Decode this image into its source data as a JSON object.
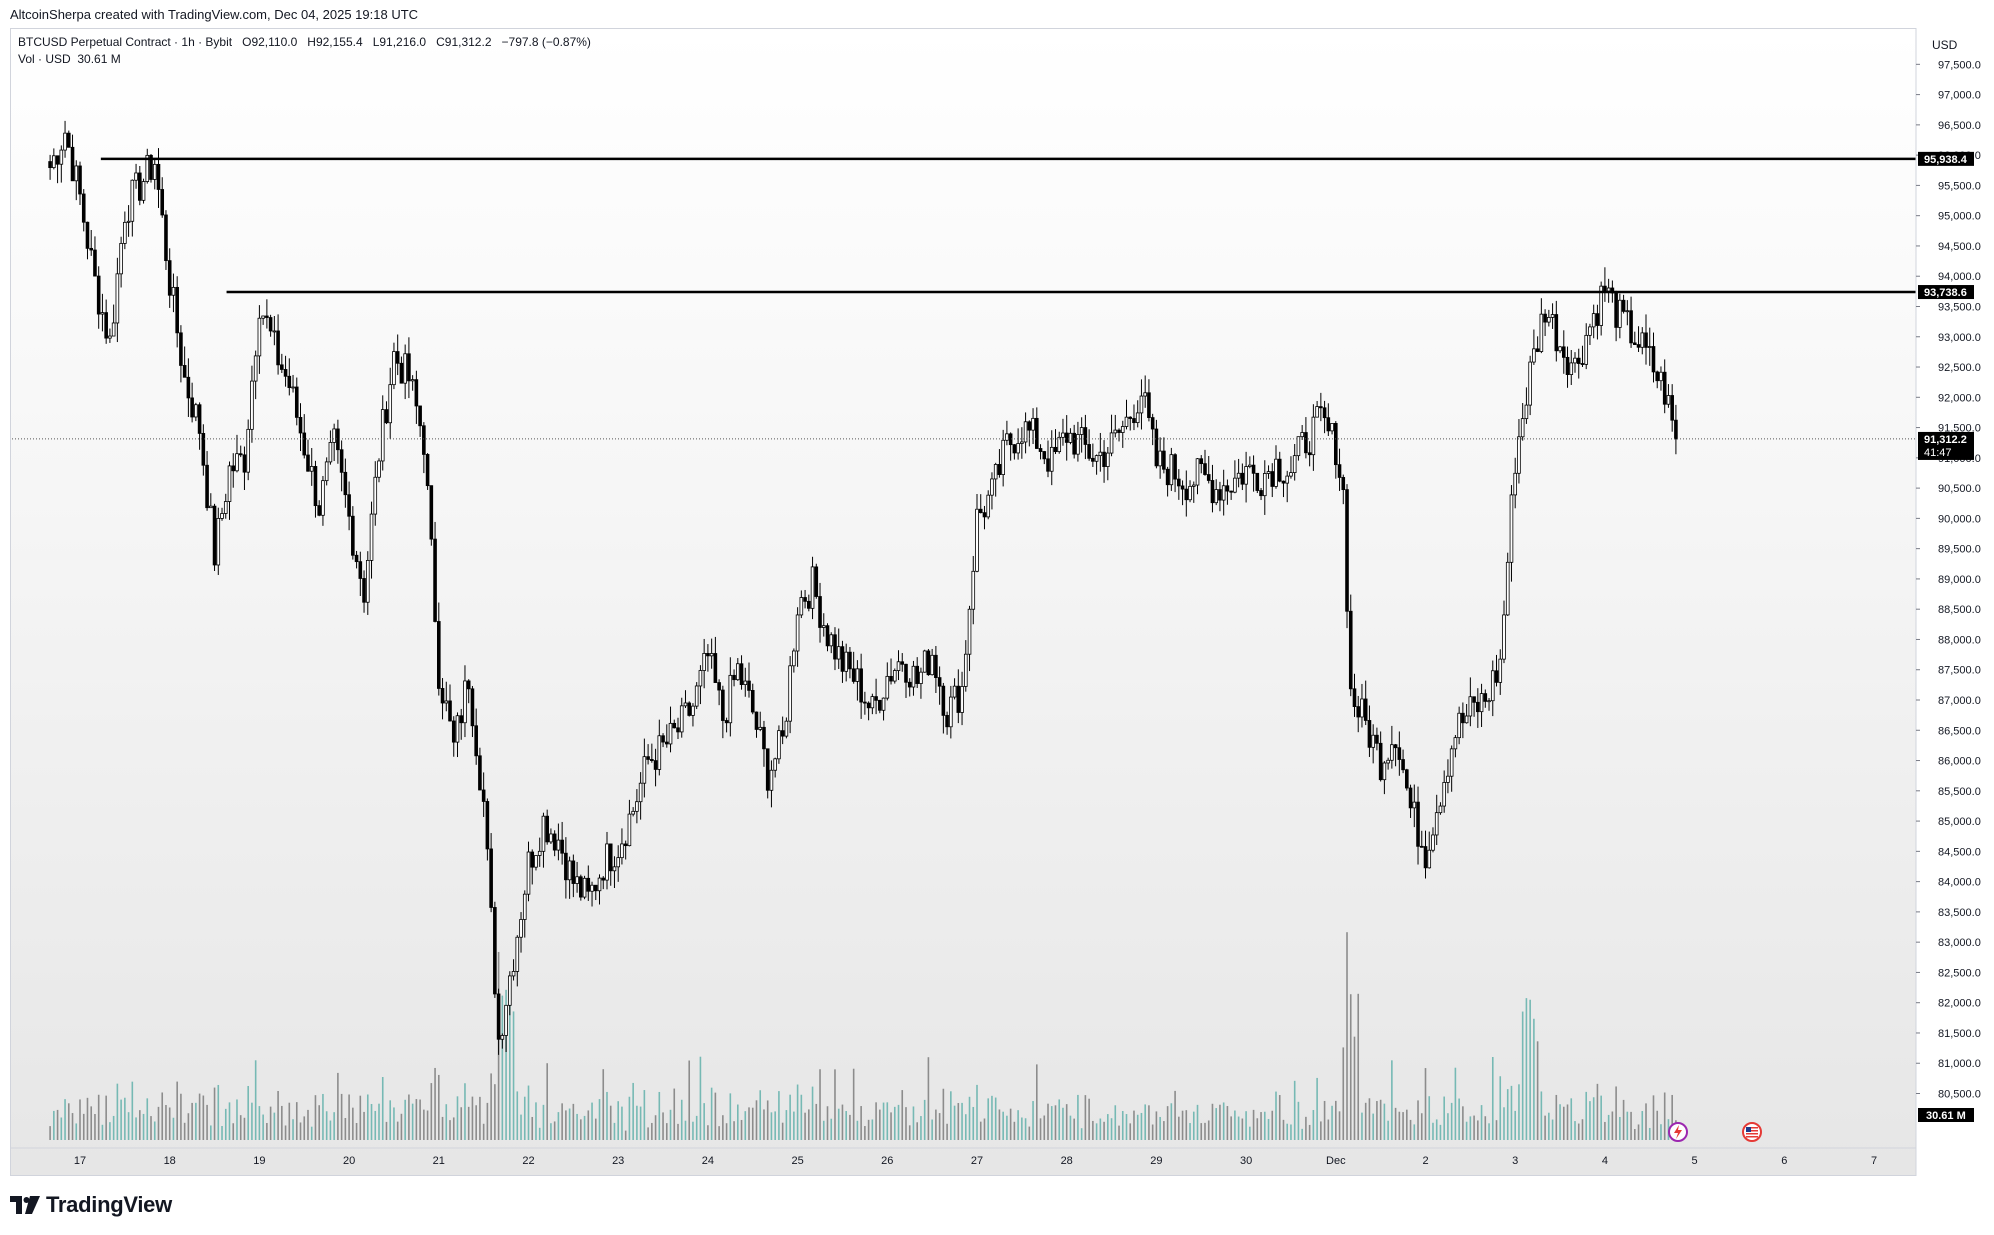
{
  "attribution": "AltcoinSherpa created with TradingView.com, Dec 04, 2025 19:18 UTC",
  "legend": {
    "symbol": "BTCUSD Perpetual Contract · 1h · Bybit",
    "o_label": "O",
    "o_value": "92,110.0",
    "h_label": "H",
    "h_value": "92,155.4",
    "l_label": "L",
    "l_value": "91,216.0",
    "c_label": "C",
    "c_value": "91,312.2",
    "change": "−797.8 (−0.87%)",
    "vol_label": "Vol · USD",
    "vol_value": "30.61 M"
  },
  "price_axis": {
    "currency": "USD",
    "ticks": [
      "97,500.0",
      "97,000.0",
      "96,500.0",
      "96,000.0",
      "95,500.0",
      "95,000.0",
      "94,500.0",
      "94,000.0",
      "93,500.0",
      "93,000.0",
      "92,500.0",
      "92,000.0",
      "91,500.0",
      "91,000.0",
      "90,500.0",
      "90,000.0",
      "89,500.0",
      "89,000.0",
      "88,500.0",
      "88,000.0",
      "87,500.0",
      "87,000.0",
      "86,500.0",
      "86,000.0",
      "85,500.0",
      "85,000.0",
      "84,500.0",
      "84,000.0",
      "83,500.0",
      "83,000.0",
      "82,500.0",
      "82,000.0",
      "81,500.0",
      "81,000.0",
      "80,500.0"
    ],
    "tick_values": [
      97500,
      97000,
      96500,
      96000,
      95500,
      95000,
      94500,
      94000,
      93500,
      93000,
      92500,
      92000,
      91500,
      91000,
      90500,
      90000,
      89500,
      89000,
      88500,
      88000,
      87500,
      87000,
      86500,
      86000,
      85500,
      85000,
      84500,
      84000,
      83500,
      83000,
      82500,
      82000,
      81500,
      81000,
      80500
    ],
    "badges": {
      "resistance_high": "95,938.4",
      "resistance_low": "93,738.6",
      "last_price": "91,312.2",
      "countdown": "41:47",
      "volume": "30.61 M"
    }
  },
  "time_axis": {
    "labels": [
      "17",
      "18",
      "19",
      "20",
      "21",
      "22",
      "23",
      "24",
      "25",
      "26",
      "27",
      "28",
      "29",
      "30",
      "Dec",
      "2",
      "3",
      "4",
      "5",
      "6",
      "7"
    ]
  },
  "brand": "TradingView",
  "colors": {
    "candle_body": "#000000",
    "line": "#000000",
    "volume_up": "#76b9b4",
    "volume_down": "#8c8c8c",
    "badge_bg": "#000000",
    "badge_text": "#ffffff",
    "event_red": "#e53935",
    "event_purple": "#9c27b0"
  },
  "chart_data": {
    "type": "candlestick",
    "symbol": "BTCUSD Perpetual Contract",
    "interval": "1h",
    "exchange": "Bybit",
    "ylim": [
      79600,
      98100
    ],
    "horizontal_lines": [
      {
        "price": 95938.4,
        "start": "Nov 17",
        "label": "95,938.4"
      },
      {
        "price": 93738.6,
        "start": "Nov 18",
        "label": "93,738.6"
      }
    ],
    "last_price": 91312.2,
    "x_labels": [
      "17",
      "18",
      "19",
      "20",
      "21",
      "22",
      "23",
      "24",
      "25",
      "26",
      "27",
      "28",
      "29",
      "30",
      "Dec",
      "2",
      "3",
      "4",
      "5",
      "6",
      "7"
    ],
    "price_path": [
      {
        "t": "Nov 16 16:00",
        "p": 95800
      },
      {
        "t": "Nov 16 20:00",
        "p": 96400
      },
      {
        "t": "Nov 17 00:00",
        "p": 95300
      },
      {
        "t": "Nov 17 04:00",
        "p": 93900
      },
      {
        "t": "Nov 17 08:00",
        "p": 92900
      },
      {
        "t": "Nov 17 12:00",
        "p": 95100
      },
      {
        "t": "Nov 17 16:00",
        "p": 95500
      },
      {
        "t": "Nov 17 20:00",
        "p": 95900
      },
      {
        "t": "Nov 18 00:00",
        "p": 93900
      },
      {
        "t": "Nov 18 04:00",
        "p": 92300
      },
      {
        "t": "Nov 18 08:00",
        "p": 91500
      },
      {
        "t": "Nov 18 12:00",
        "p": 89400
      },
      {
        "t": "Nov 18 16:00",
        "p": 90800
      },
      {
        "t": "Nov 18 20:00",
        "p": 91000
      },
      {
        "t": "Nov 19 00:00",
        "p": 93600
      },
      {
        "t": "Nov 19 04:00",
        "p": 92800
      },
      {
        "t": "Nov 19 08:00",
        "p": 92200
      },
      {
        "t": "Nov 19 12:00",
        "p": 91200
      },
      {
        "t": "Nov 19 16:00",
        "p": 90200
      },
      {
        "t": "Nov 19 20:00",
        "p": 91200
      },
      {
        "t": "Nov 20 00:00",
        "p": 90000
      },
      {
        "t": "Nov 20 04:00",
        "p": 88800
      },
      {
        "t": "Nov 20 08:00",
        "p": 91100
      },
      {
        "t": "Nov 20 12:00",
        "p": 92700
      },
      {
        "t": "Nov 20 16:00",
        "p": 92300
      },
      {
        "t": "Nov 20 20:00",
        "p": 91300
      },
      {
        "t": "Nov 21 00:00",
        "p": 87500
      },
      {
        "t": "Nov 21 04:00",
        "p": 86200
      },
      {
        "t": "Nov 21 08:00",
        "p": 87400
      },
      {
        "t": "Nov 21 12:00",
        "p": 85300
      },
      {
        "t": "Nov 21 16:00",
        "p": 81400
      },
      {
        "t": "Nov 21 20:00",
        "p": 82800
      },
      {
        "t": "Nov 22 00:00",
        "p": 84300
      },
      {
        "t": "Nov 22 04:00",
        "p": 85000
      },
      {
        "t": "Nov 22 08:00",
        "p": 84700
      },
      {
        "t": "Nov 22 12:00",
        "p": 84000
      },
      {
        "t": "Nov 22 16:00",
        "p": 83700
      },
      {
        "t": "Nov 22 20:00",
        "p": 84300
      },
      {
        "t": "Nov 23 00:00",
        "p": 84600
      },
      {
        "t": "Nov 23 04:00",
        "p": 85200
      },
      {
        "t": "Nov 23 08:00",
        "p": 86000
      },
      {
        "t": "Nov 23 12:00",
        "p": 86200
      },
      {
        "t": "Nov 23 16:00",
        "p": 86500
      },
      {
        "t": "Nov 23 20:00",
        "p": 86900
      },
      {
        "t": "Nov 24 00:00",
        "p": 87700
      },
      {
        "t": "Nov 24 04:00",
        "p": 86700
      },
      {
        "t": "Nov 24 08:00",
        "p": 87500
      },
      {
        "t": "Nov 24 12:00",
        "p": 86800
      },
      {
        "t": "Nov 24 16:00",
        "p": 85800
      },
      {
        "t": "Nov 24 20:00",
        "p": 86300
      },
      {
        "t": "Nov 25 00:00",
        "p": 88600
      },
      {
        "t": "Nov 25 04:00",
        "p": 88900
      },
      {
        "t": "Nov 25 08:00",
        "p": 88100
      },
      {
        "t": "Nov 25 12:00",
        "p": 87600
      },
      {
        "t": "Nov 25 16:00",
        "p": 87300
      },
      {
        "t": "Nov 25 20:00",
        "p": 86800
      },
      {
        "t": "Nov 26 00:00",
        "p": 87400
      },
      {
        "t": "Nov 26 04:00",
        "p": 87700
      },
      {
        "t": "Nov 26 08:00",
        "p": 87300
      },
      {
        "t": "Nov 26 12:00",
        "p": 87800
      },
      {
        "t": "Nov 26 16:00",
        "p": 86800
      },
      {
        "t": "Nov 26 20:00",
        "p": 87200
      },
      {
        "t": "Nov 27 00:00",
        "p": 90000
      },
      {
        "t": "Nov 27 04:00",
        "p": 90400
      },
      {
        "t": "Nov 27 08:00",
        "p": 91200
      },
      {
        "t": "Nov 27 12:00",
        "p": 91500
      },
      {
        "t": "Nov 27 16:00",
        "p": 91300
      },
      {
        "t": "Nov 27 20:00",
        "p": 90900
      },
      {
        "t": "Nov 28 00:00",
        "p": 91400
      },
      {
        "t": "Nov 28 04:00",
        "p": 91200
      },
      {
        "t": "Nov 28 08:00",
        "p": 91000
      },
      {
        "t": "Nov 28 12:00",
        "p": 91200
      },
      {
        "t": "Nov 28 16:00",
        "p": 91600
      },
      {
        "t": "Nov 28 20:00",
        "p": 92100
      },
      {
        "t": "Nov 29 00:00",
        "p": 90900
      },
      {
        "t": "Nov 29 04:00",
        "p": 90800
      },
      {
        "t": "Nov 29 08:00",
        "p": 90600
      },
      {
        "t": "Nov 29 12:00",
        "p": 90700
      },
      {
        "t": "Nov 29 16:00",
        "p": 90500
      },
      {
        "t": "Nov 29 20:00",
        "p": 90600
      },
      {
        "t": "Nov 30 00:00",
        "p": 90800
      },
      {
        "t": "Nov 30 04:00",
        "p": 90700
      },
      {
        "t": "Nov 30 08:00",
        "p": 90900
      },
      {
        "t": "Nov 30 12:00",
        "p": 90800
      },
      {
        "t": "Nov 30 16:00",
        "p": 91300
      },
      {
        "t": "Nov 30 20:00",
        "p": 91600
      },
      {
        "t": "Dec 01 00:00",
        "p": 91200
      },
      {
        "t": "Dec 01 02:00",
        "p": 90400
      },
      {
        "t": "Dec 01 04:00",
        "p": 87100
      },
      {
        "t": "Dec 01 08:00",
        "p": 86600
      },
      {
        "t": "Dec 01 12:00",
        "p": 86000
      },
      {
        "t": "Dec 01 16:00",
        "p": 86500
      },
      {
        "t": "Dec 01 20:00",
        "p": 85200
      },
      {
        "t": "Dec 02 00:00",
        "p": 84500
      },
      {
        "t": "Dec 02 04:00",
        "p": 85500
      },
      {
        "t": "Dec 02 08:00",
        "p": 86500
      },
      {
        "t": "Dec 02 12:00",
        "p": 86800
      },
      {
        "t": "Dec 02 16:00",
        "p": 87000
      },
      {
        "t": "Dec 02 20:00",
        "p": 87600
      },
      {
        "t": "Dec 03 00:00",
        "p": 91000
      },
      {
        "t": "Dec 03 04:00",
        "p": 92400
      },
      {
        "t": "Dec 03 08:00",
        "p": 93500
      },
      {
        "t": "Dec 03 12:00",
        "p": 92900
      },
      {
        "t": "Dec 03 16:00",
        "p": 92500
      },
      {
        "t": "Dec 03 20:00",
        "p": 93200
      },
      {
        "t": "Dec 04 00:00",
        "p": 93800
      },
      {
        "t": "Dec 04 04:00",
        "p": 93300
      },
      {
        "t": "Dec 04 08:00",
        "p": 93000
      },
      {
        "t": "Dec 04 12:00",
        "p": 92600
      },
      {
        "t": "Dec 04 16:00",
        "p": 92100
      },
      {
        "t": "Dec 04 19:00",
        "p": 91312
      }
    ],
    "volume_spikes": [
      {
        "t": "Nov 21 18:00",
        "value": "high"
      },
      {
        "t": "Dec 01 04:00",
        "value": "high"
      },
      {
        "t": "Dec 03 04:00",
        "value": "high"
      }
    ]
  }
}
